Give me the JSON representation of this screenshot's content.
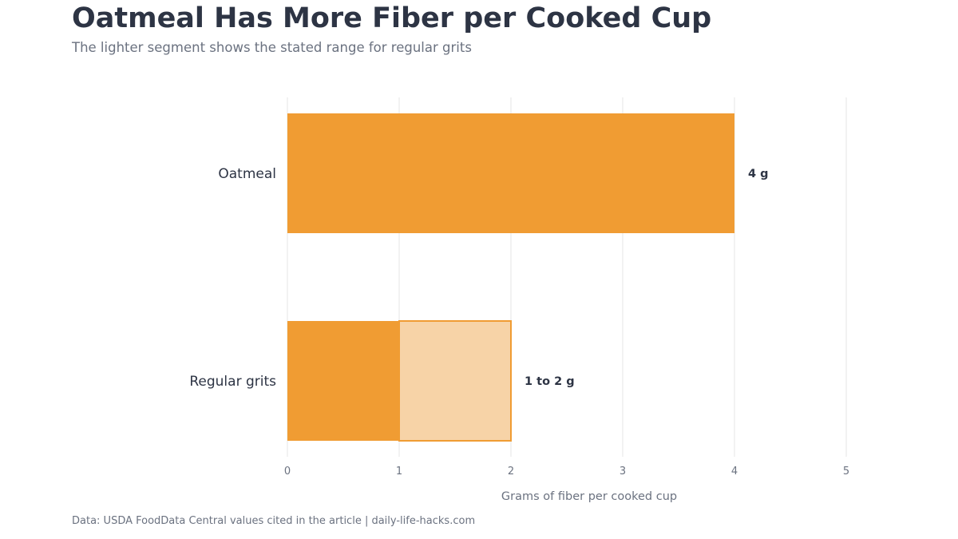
{
  "header": {
    "title": "Oatmeal Has More Fiber per Cooked Cup",
    "subtitle": "The lighter segment shows the stated range for regular grits"
  },
  "footer": {
    "source": "Data: USDA FoodData Central values cited in the article | daily-life-hacks.com"
  },
  "colors": {
    "bar": "#f09c33",
    "range_fill": "#f7d3a7",
    "range_stroke": "#f09c33",
    "grid": "#e6e6e6"
  },
  "chart_data": {
    "type": "bar",
    "orientation": "horizontal",
    "title": "Oatmeal Has More Fiber per Cooked Cup",
    "subtitle": "The lighter segment shows the stated range for regular grits",
    "xlabel": "Grams of fiber per cooked cup",
    "ylabel": "",
    "xlim": [
      0,
      5
    ],
    "xticks": [
      0,
      1,
      2,
      3,
      4,
      5
    ],
    "grid": true,
    "categories": [
      "Oatmeal",
      "Regular grits"
    ],
    "bars": [
      {
        "category": "Oatmeal",
        "value": 4,
        "range_max": null,
        "label": "4 g"
      },
      {
        "category": "Regular grits",
        "value": 1,
        "range_max": 2,
        "label": "1 to 2 g"
      }
    ]
  }
}
